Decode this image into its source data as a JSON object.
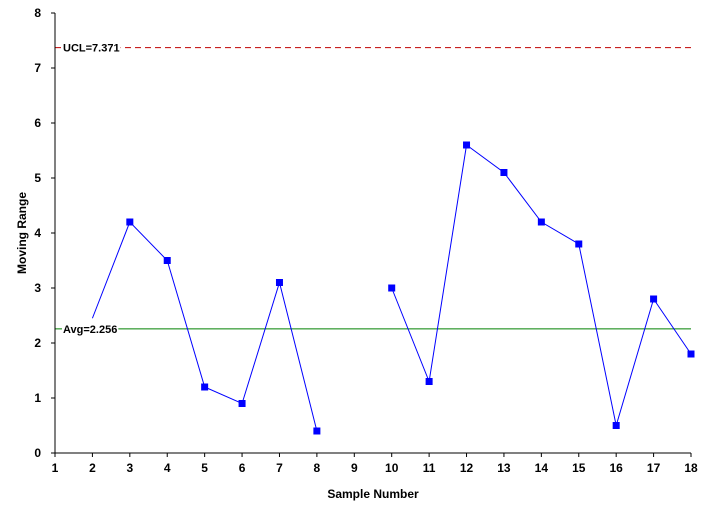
{
  "chart_data": {
    "type": "line",
    "title": "",
    "xlabel": "Sample Number",
    "ylabel": "Moving Range",
    "xlim": [
      1,
      18
    ],
    "ylim": [
      0,
      8
    ],
    "x_ticks": [
      1,
      2,
      3,
      4,
      5,
      6,
      7,
      8,
      9,
      10,
      11,
      12,
      13,
      14,
      15,
      16,
      17,
      18
    ],
    "y_ticks": [
      0,
      1,
      2,
      3,
      4,
      5,
      6,
      7,
      8
    ],
    "grid": false,
    "legend": "none",
    "series": [
      {
        "color": "#0000ff",
        "marker": "square",
        "points": [
          {
            "x": 2,
            "y": 2.45
          },
          {
            "x": 3,
            "y": 4.2
          },
          {
            "x": 4,
            "y": 3.5
          },
          {
            "x": 5,
            "y": 1.2
          },
          {
            "x": 6,
            "y": 0.9
          },
          {
            "x": 7,
            "y": 3.1
          },
          {
            "x": 8,
            "y": 0.4
          },
          {
            "x": 10,
            "y": 3.0
          },
          {
            "x": 11,
            "y": 1.3
          },
          {
            "x": 12,
            "y": 5.6
          },
          {
            "x": 13,
            "y": 5.1
          },
          {
            "x": 14,
            "y": 4.2
          },
          {
            "x": 15,
            "y": 3.8
          },
          {
            "x": 16,
            "y": 0.5
          },
          {
            "x": 17,
            "y": 2.8
          },
          {
            "x": 18,
            "y": 1.8
          }
        ],
        "segments": [
          [
            2,
            8
          ],
          [
            10,
            18
          ]
        ],
        "unmarked_x": [
          2
        ]
      }
    ],
    "reference_lines": [
      {
        "name": "ucl",
        "label": "UCL=7.371",
        "value": 7.371,
        "color": "#c00000",
        "style": "dashed"
      },
      {
        "name": "avg",
        "label": "Avg=2.256",
        "value": 2.256,
        "color": "#008000",
        "style": "solid"
      }
    ]
  }
}
